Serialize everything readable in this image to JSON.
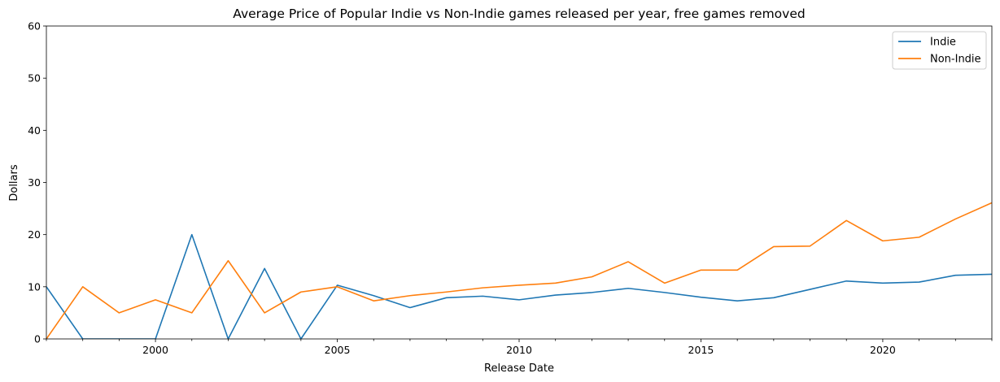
{
  "chart_data": {
    "type": "line",
    "title": "Average Price of Popular Indie vs Non-Indie games released per year, free games removed",
    "xlabel": "Release Date",
    "ylabel": "Dollars",
    "xlim": [
      1997,
      2023
    ],
    "ylim": [
      0,
      60
    ],
    "xticks": [
      2000,
      2005,
      2010,
      2015,
      2020
    ],
    "xtick_labels": [
      "2000",
      "2005",
      "2010",
      "2015",
      "2020"
    ],
    "yticks": [
      0,
      10,
      20,
      30,
      40,
      50,
      60
    ],
    "ytick_labels": [
      "0",
      "10",
      "20",
      "30",
      "40",
      "50",
      "60"
    ],
    "grid": false,
    "legend_position": "top-right",
    "x": [
      1997,
      1998,
      1999,
      2000,
      2001,
      2002,
      2003,
      2004,
      2005,
      2006,
      2007,
      2008,
      2009,
      2010,
      2011,
      2012,
      2013,
      2014,
      2015,
      2016,
      2017,
      2018,
      2019,
      2020,
      2021,
      2022,
      2023
    ],
    "series": [
      {
        "name": "Indie",
        "color": "#1f77b4",
        "values": [
          10.0,
          0.0,
          0.0,
          0.0,
          20.0,
          0.0,
          13.5,
          0.0,
          10.3,
          8.3,
          6.0,
          7.9,
          8.2,
          7.5,
          8.4,
          8.9,
          9.7,
          8.9,
          8.0,
          7.3,
          7.9,
          9.5,
          11.1,
          10.7,
          10.9,
          12.2,
          12.4
        ]
      },
      {
        "name": "Non-Indie",
        "color": "#ff7f0e",
        "values": [
          0.0,
          10.0,
          5.0,
          7.5,
          5.0,
          15.0,
          5.0,
          9.0,
          10.0,
          7.3,
          8.3,
          9.0,
          9.8,
          10.3,
          10.7,
          11.9,
          14.8,
          10.7,
          13.2,
          13.2,
          17.7,
          17.8,
          22.7,
          18.8,
          19.5,
          23.0,
          26.1
        ]
      }
    ]
  }
}
